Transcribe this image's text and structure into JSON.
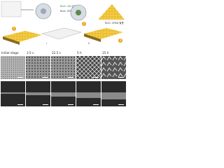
{
  "diagram": {
    "steps": [
      "1",
      "2",
      "3"
    ],
    "labels": [
      "RuO₂ 나노입자",
      "RuO₂ CPANs",
      "RuO₂ CPAN 필름"
    ],
    "roman": [
      "i",
      "ii"
    ]
  },
  "panels": [
    {
      "label": "Initial stage"
    },
    {
      "label": "3.5 s"
    },
    {
      "label": "22.5 s"
    },
    {
      "label": "5 h"
    },
    {
      "label": "15 h"
    }
  ]
}
